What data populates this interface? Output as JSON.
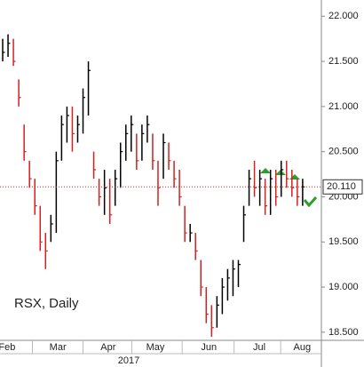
{
  "chart_data": {
    "type": "ohlc",
    "annotation": "RSX, Daily",
    "year": "2017",
    "up_color": "#000000",
    "down_color": "#d42020",
    "categories": [
      null,
      null,
      null,
      null,
      null,
      null,
      null,
      null,
      null,
      null,
      null,
      null,
      null,
      null,
      null,
      null,
      null,
      null,
      null,
      null,
      null,
      null,
      null,
      null,
      null,
      null,
      null,
      null,
      null,
      null,
      null,
      null,
      null,
      null,
      null,
      null,
      null,
      null,
      null,
      null,
      null,
      null,
      null,
      null,
      null,
      null,
      null,
      null,
      null,
      null,
      null,
      null,
      null,
      null,
      null,
      null,
      null
    ],
    "high": [
      21.75,
      21.8,
      21.75,
      21.3,
      20.8,
      20.4,
      20.2,
      19.9,
      19.6,
      19.8,
      20.5,
      20.9,
      21.0,
      21.0,
      20.9,
      21.2,
      21.5,
      20.5,
      20.2,
      20.3,
      20.2,
      20.3,
      20.6,
      20.8,
      20.9,
      20.7,
      20.8,
      20.9,
      20.7,
      20.4,
      20.7,
      20.6,
      20.4,
      20.3,
      19.9,
      19.7,
      19.6,
      19.3,
      19.0,
      18.8,
      18.9,
      19.1,
      19.2,
      19.3,
      19.3,
      19.9,
      20.3,
      20.4,
      20.3,
      20.2,
      20.3,
      20.3,
      20.4,
      20.4,
      20.3,
      20.2,
      20.2
    ],
    "low": [
      21.5,
      21.55,
      21.45,
      21.0,
      20.4,
      20.1,
      19.8,
      19.4,
      19.2,
      19.5,
      19.6,
      20.4,
      20.6,
      20.5,
      20.6,
      20.7,
      20.9,
      20.2,
      19.9,
      19.8,
      19.7,
      19.9,
      20.1,
      20.4,
      20.5,
      20.3,
      20.4,
      20.6,
      20.3,
      19.9,
      20.2,
      20.3,
      20.1,
      19.9,
      19.5,
      19.5,
      19.3,
      18.9,
      18.6,
      18.45,
      18.55,
      18.7,
      18.85,
      18.9,
      19.0,
      19.5,
      19.9,
      20.0,
      19.9,
      19.8,
      19.8,
      19.9,
      20.0,
      20.1,
      20.0,
      19.9,
      19.9
    ],
    "close": [
      21.6,
      21.7,
      21.5,
      21.1,
      20.5,
      20.2,
      19.9,
      19.5,
      19.4,
      19.7,
      20.4,
      20.8,
      20.9,
      20.7,
      20.8,
      21.1,
      21.4,
      20.3,
      20.0,
      20.1,
      19.8,
      20.2,
      20.5,
      20.7,
      20.8,
      20.4,
      20.7,
      20.8,
      20.4,
      20.1,
      20.6,
      20.4,
      20.2,
      20.0,
      19.6,
      19.6,
      19.4,
      19.0,
      18.7,
      18.55,
      18.8,
      19.0,
      19.1,
      19.2,
      19.25,
      19.8,
      20.2,
      20.1,
      20.2,
      19.9,
      20.2,
      20.0,
      20.3,
      20.2,
      20.1,
      20.0,
      20.11
    ],
    "last_price": {
      "value": 20.11,
      "label": "20.110"
    },
    "xlim": [
      0,
      60
    ],
    "xticks": [
      {
        "value": 1.3,
        "label": "Feb"
      },
      {
        "value": 10.8,
        "label": "Mar"
      },
      {
        "value": 20.2,
        "label": "Apr"
      },
      {
        "value": 29.0,
        "label": "May"
      },
      {
        "value": 39.0,
        "label": "Jun"
      },
      {
        "value": 48.4,
        "label": "Jul"
      },
      {
        "value": 56.4,
        "label": "Aug"
      }
    ],
    "ylim": [
      18.41,
      22.18
    ],
    "yticks": [
      {
        "value": 18.5,
        "label": "18.500"
      },
      {
        "value": 19,
        "label": "19.000"
      },
      {
        "value": 19.5,
        "label": "19.500"
      },
      {
        "value": 20,
        "label": "20.000"
      },
      {
        "value": 20.5,
        "label": "20.500"
      },
      {
        "value": 21,
        "label": "21.000"
      },
      {
        "value": 21.5,
        "label": "21.500"
      },
      {
        "value": 22,
        "label": "22.000"
      }
    ]
  }
}
